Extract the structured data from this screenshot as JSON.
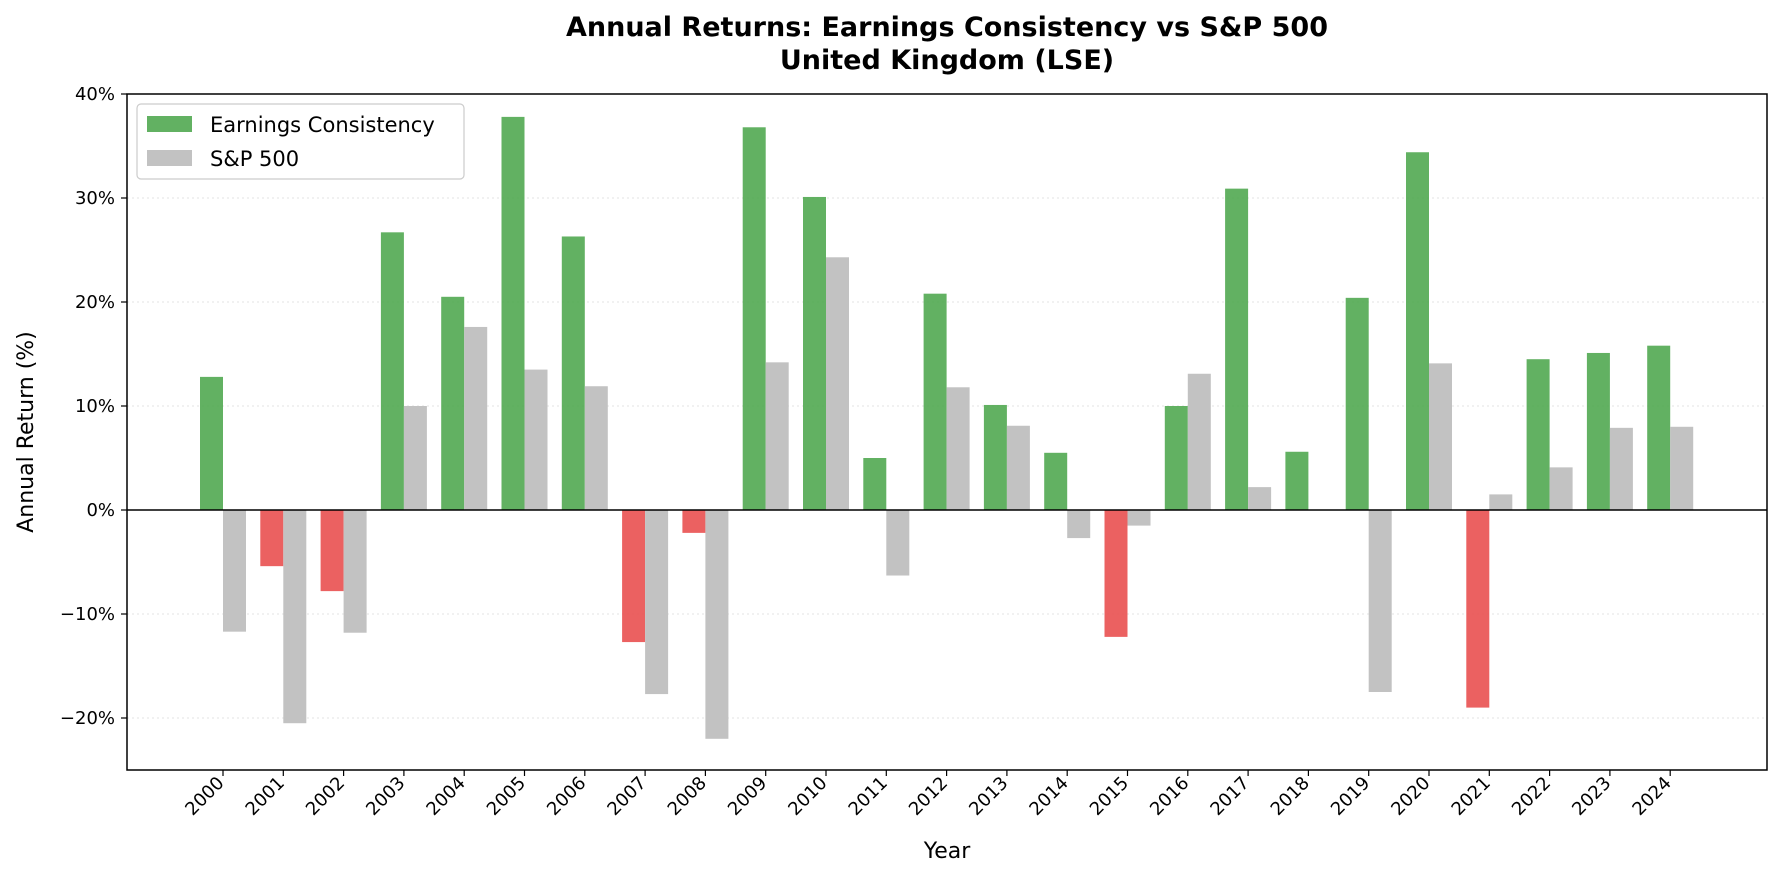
{
  "chart_data": {
    "type": "bar",
    "title": "Annual Returns: Earnings Consistency vs S&P 500",
    "subtitle": "United Kingdom (LSE)",
    "xlabel": "Year",
    "ylabel": "Annual Return (%)",
    "ylim": [
      -25,
      40
    ],
    "yticks": [
      -20,
      -10,
      0,
      10,
      20,
      30,
      40
    ],
    "ytick_labels": [
      "−20%",
      "−10%",
      "0%",
      "10%",
      "20%",
      "30%",
      "40%"
    ],
    "grid": "horizontal dotted",
    "legend_position": "top-left",
    "categories": [
      "2000",
      "2001",
      "2002",
      "2003",
      "2004",
      "2005",
      "2006",
      "2007",
      "2008",
      "2009",
      "2010",
      "2011",
      "2012",
      "2013",
      "2014",
      "2015",
      "2016",
      "2017",
      "2018",
      "2019",
      "2020",
      "2021",
      "2022",
      "2023",
      "2024"
    ],
    "series": [
      {
        "name": "Earnings Consistency",
        "color": "#4ca64c",
        "negative_color": "#e84b4b",
        "values": [
          12.8,
          -5.4,
          -7.8,
          26.7,
          20.5,
          37.8,
          26.3,
          -12.7,
          -2.2,
          36.8,
          30.1,
          5.0,
          20.8,
          10.1,
          5.5,
          -12.2,
          10.0,
          30.9,
          5.6,
          20.4,
          34.4,
          -19.0,
          14.5,
          15.1,
          15.8
        ]
      },
      {
        "name": "S&P 500",
        "color": "#bfbfbf",
        "values": [
          -11.7,
          -20.5,
          -11.8,
          10.0,
          17.6,
          13.5,
          11.9,
          -17.7,
          -22.0,
          14.2,
          24.3,
          -6.3,
          11.8,
          8.1,
          -2.7,
          -1.5,
          13.1,
          2.2,
          0.0,
          -17.5,
          14.1,
          1.5,
          4.1,
          7.9,
          8.0
        ]
      }
    ]
  }
}
